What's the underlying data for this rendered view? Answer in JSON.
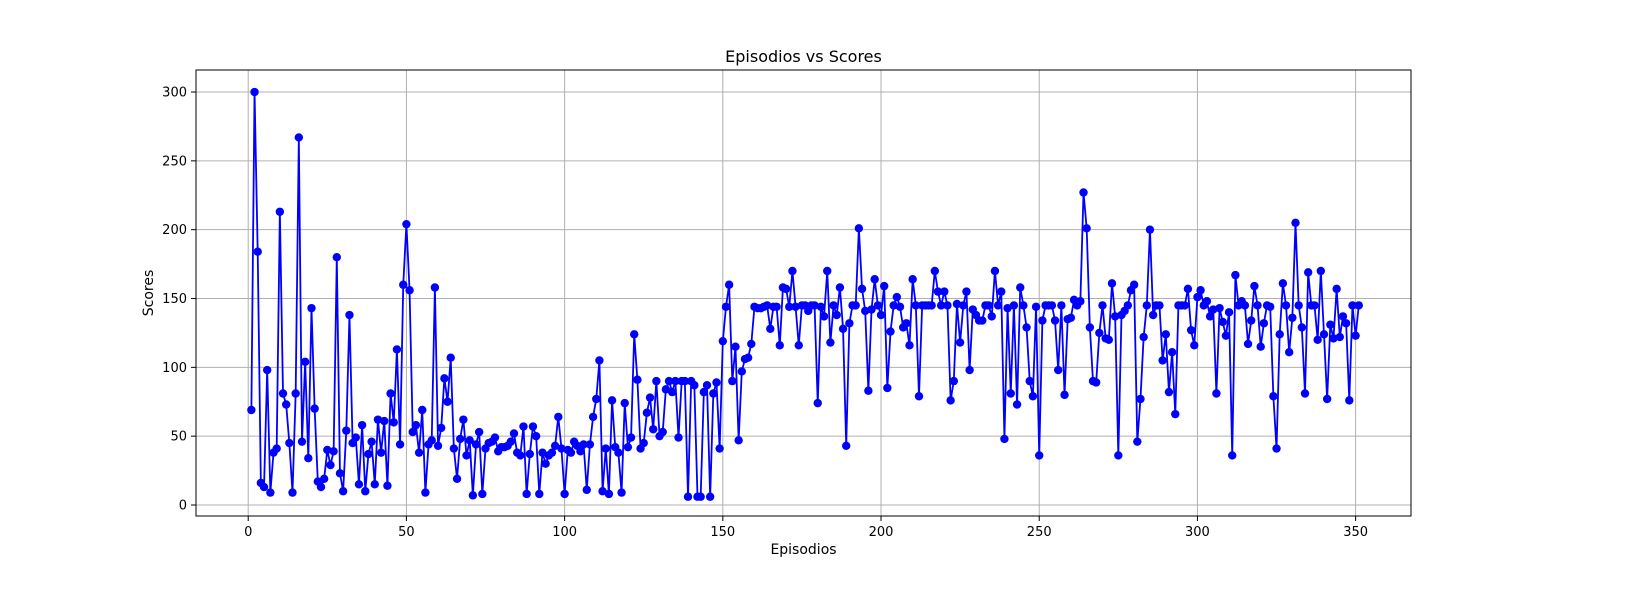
{
  "chart_data": {
    "type": "line",
    "title": "Episodios vs Scores",
    "xlabel": "Episodios",
    "ylabel": "Scores",
    "xlim": [
      -16.5,
      367.5
    ],
    "ylim": [
      -8,
      316
    ],
    "xticks": [
      0,
      50,
      100,
      150,
      200,
      250,
      300,
      350
    ],
    "yticks": [
      0,
      50,
      100,
      150,
      200,
      250,
      300
    ],
    "grid": true,
    "series": [
      {
        "color": "#0000ff",
        "marker": "circle",
        "x_start": 1,
        "values": [
          69,
          300,
          184,
          16,
          13,
          98,
          9,
          38,
          41,
          213,
          81,
          73,
          45,
          9,
          81,
          267,
          46,
          104,
          34,
          143,
          70,
          17,
          13,
          19,
          40,
          29,
          39,
          180,
          23,
          10,
          54,
          138,
          45,
          49,
          15,
          58,
          10,
          37,
          46,
          15,
          62,
          38,
          61,
          14,
          81,
          60,
          113,
          44,
          160,
          204,
          156,
          53,
          58,
          38,
          69,
          9,
          44,
          47,
          158,
          43,
          56,
          92,
          75,
          107,
          41,
          19,
          48,
          62,
          36,
          47,
          7,
          44,
          53,
          8,
          41,
          45,
          46,
          49,
          39,
          42,
          42,
          43,
          46,
          52,
          38,
          36,
          57,
          8,
          37,
          57,
          50,
          8,
          38,
          30,
          36,
          38,
          43,
          64,
          41,
          8,
          40,
          38,
          46,
          43,
          39,
          44,
          11,
          44,
          64,
          77,
          105,
          10,
          41,
          8,
          76,
          42,
          38,
          9,
          74,
          42,
          49,
          124,
          91,
          41,
          45,
          67,
          78,
          55,
          90,
          50,
          53,
          84,
          90,
          82,
          90,
          49,
          90,
          90,
          6,
          90,
          87,
          6,
          6,
          82,
          87,
          6,
          81,
          89,
          41,
          119,
          144,
          160,
          90,
          115,
          47,
          97,
          106,
          107,
          117,
          144,
          143,
          143,
          144,
          145,
          128,
          144,
          144,
          116,
          158,
          157,
          144,
          170,
          144,
          116,
          145,
          145,
          141,
          145,
          145,
          74,
          144,
          137,
          170,
          118,
          145,
          138,
          158,
          128,
          43,
          132,
          145,
          145,
          201,
          157,
          141,
          83,
          142,
          164,
          145,
          138,
          159,
          85,
          126,
          145,
          151,
          144,
          129,
          132,
          116,
          164,
          145,
          79,
          145,
          145,
          145,
          145,
          170,
          155,
          145,
          155,
          145,
          76,
          90,
          146,
          118,
          145,
          155,
          98,
          142,
          138,
          134,
          134,
          145,
          145,
          137,
          170,
          145,
          155,
          48,
          143,
          81,
          145,
          73,
          158,
          145,
          129,
          90,
          79,
          144,
          36,
          134,
          145,
          145,
          145,
          134,
          98,
          145,
          80,
          135,
          136,
          149,
          145,
          148,
          227,
          201,
          129,
          90,
          89,
          125,
          145,
          121,
          120,
          161,
          137,
          36,
          138,
          141,
          145,
          156,
          160,
          46,
          77,
          122,
          145,
          200,
          138,
          145,
          145,
          105,
          124,
          82,
          111,
          66,
          145,
          145,
          145,
          157,
          127,
          116,
          151,
          156,
          145,
          148,
          137,
          142,
          81,
          143,
          133,
          123,
          140,
          36,
          167,
          145,
          148,
          145,
          117,
          134,
          159,
          145,
          115,
          132,
          145,
          144,
          79,
          41,
          124,
          161,
          145,
          111,
          136,
          205,
          145,
          129,
          81,
          169,
          145,
          145,
          120,
          170,
          124,
          77,
          131,
          121,
          157,
          122,
          137,
          132,
          76,
          145,
          123,
          145
        ]
      }
    ]
  }
}
